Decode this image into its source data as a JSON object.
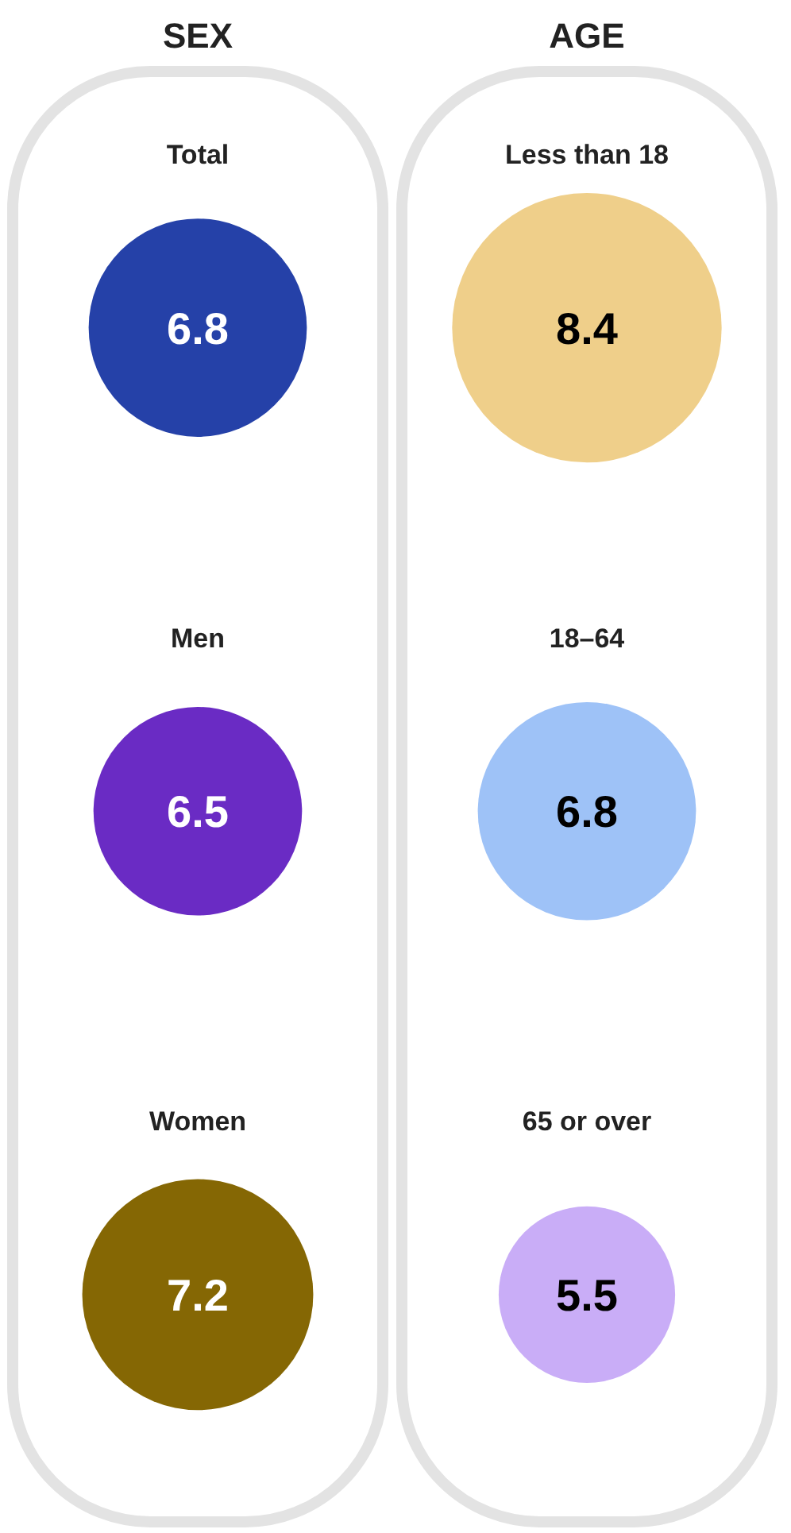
{
  "chart_data": [
    {
      "type": "other",
      "title": "SEX",
      "categories": [
        "Total",
        "Men",
        "Women"
      ],
      "values": [
        6.8,
        6.5,
        7.2
      ],
      "colors": [
        "#2541a8",
        "#6a2bc4",
        "#856704"
      ],
      "data_labels": true
    },
    {
      "type": "other",
      "title": "AGE",
      "categories": [
        "Less than 18",
        "18–64",
        "65 or over"
      ],
      "values": [
        8.4,
        6.8,
        5.5
      ],
      "colors": [
        "#efcf8a",
        "#9ec2f7",
        "#c9adf7"
      ],
      "data_labels": true
    }
  ]
}
